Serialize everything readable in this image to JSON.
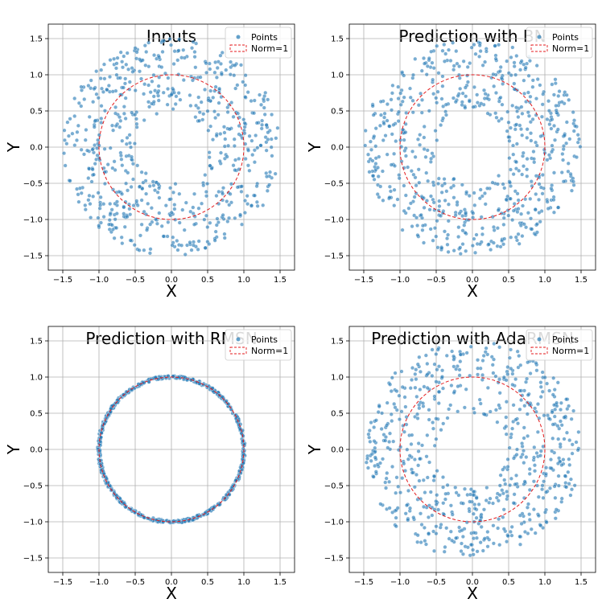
{
  "colors": {
    "points": "#1f77b4",
    "circle": "#e41a1c",
    "grid": "#b0b0b0"
  },
  "chart_data": [
    {
      "type": "scatter",
      "title": "Inputs",
      "xlabel": "X",
      "ylabel": "Y",
      "xlim": [
        -1.7,
        1.7
      ],
      "ylim": [
        -1.7,
        1.7
      ],
      "xticks": [
        -1.5,
        -1.0,
        -0.5,
        0.0,
        0.5,
        1.0,
        1.5
      ],
      "yticks": [
        -1.5,
        -1.0,
        -0.5,
        0.0,
        0.5,
        1.0,
        1.5
      ],
      "xtick_labels": [
        "−1.5",
        "−1.0",
        "−0.5",
        "0.0",
        "0.5",
        "1.0",
        "1.5"
      ],
      "ytick_labels": [
        "−1.5",
        "−1.0",
        "−0.5",
        "0.0",
        "0.5",
        "1.0",
        "1.5"
      ],
      "grid": true,
      "legend": {
        "position": "top-right",
        "entries": [
          "Points",
          "Norm=1"
        ]
      },
      "reference_circle_radius": 1.0,
      "points": {
        "count": 650,
        "distribution": "uniform annulus",
        "r_min": 0.5,
        "r_max": 1.5,
        "seed": 1
      }
    },
    {
      "type": "scatter",
      "title": "Prediction with BN",
      "xlabel": "X",
      "ylabel": "Y",
      "xlim": [
        -1.7,
        1.7
      ],
      "ylim": [
        -1.7,
        1.7
      ],
      "xticks": [
        -1.5,
        -1.0,
        -0.5,
        0.0,
        0.5,
        1.0,
        1.5
      ],
      "yticks": [
        -1.5,
        -1.0,
        -0.5,
        0.0,
        0.5,
        1.0,
        1.5
      ],
      "xtick_labels": [
        "−1.5",
        "−1.0",
        "−0.5",
        "0.0",
        "0.5",
        "1.0",
        "1.5"
      ],
      "ytick_labels": [
        "−1.5",
        "−1.0",
        "−0.5",
        "0.0",
        "0.5",
        "1.0",
        "1.5"
      ],
      "grid": true,
      "legend": {
        "position": "top-right",
        "entries": [
          "Points",
          "Norm=1"
        ]
      },
      "reference_circle_radius": 1.0,
      "points": {
        "count": 650,
        "distribution": "uniform annulus",
        "r_min": 0.5,
        "r_max": 1.5,
        "seed": 2
      }
    },
    {
      "type": "scatter",
      "title": "Prediction with RMSN",
      "xlabel": "X",
      "ylabel": "Y",
      "xlim": [
        -1.7,
        1.7
      ],
      "ylim": [
        -1.7,
        1.7
      ],
      "xticks": [
        -1.5,
        -1.0,
        -0.5,
        0.0,
        0.5,
        1.0,
        1.5
      ],
      "yticks": [
        -1.5,
        -1.0,
        -0.5,
        0.0,
        0.5,
        1.0,
        1.5
      ],
      "xtick_labels": [
        "−1.5",
        "−1.0",
        "−0.5",
        "0.0",
        "0.5",
        "1.0",
        "1.5"
      ],
      "ytick_labels": [
        "−1.5",
        "−1.0",
        "−0.5",
        "0.0",
        "0.5",
        "1.0",
        "1.5"
      ],
      "grid": true,
      "legend": {
        "position": "top-right",
        "entries": [
          "Points",
          "Norm=1"
        ]
      },
      "reference_circle_radius": 1.0,
      "points": {
        "count": 650,
        "distribution": "unit circle",
        "r_min": 0.98,
        "r_max": 1.02,
        "seed": 3
      }
    },
    {
      "type": "scatter",
      "title": "Prediction with AdaRMSN",
      "xlabel": "X",
      "ylabel": "Y",
      "xlim": [
        -1.7,
        1.7
      ],
      "ylim": [
        -1.7,
        1.7
      ],
      "xticks": [
        -1.5,
        -1.0,
        -0.5,
        0.0,
        0.5,
        1.0,
        1.5
      ],
      "yticks": [
        -1.5,
        -1.0,
        -0.5,
        0.0,
        0.5,
        1.0,
        1.5
      ],
      "xtick_labels": [
        "−1.5",
        "−1.0",
        "−0.5",
        "0.0",
        "0.5",
        "1.0",
        "1.5"
      ],
      "ytick_labels": [
        "−1.5",
        "−1.0",
        "−0.5",
        "0.0",
        "0.5",
        "1.0",
        "1.5"
      ],
      "grid": true,
      "legend": {
        "position": "top-right",
        "entries": [
          "Points",
          "Norm=1"
        ]
      },
      "reference_circle_radius": 1.0,
      "points": {
        "count": 650,
        "distribution": "uniform annulus",
        "r_min": 0.5,
        "r_max": 1.5,
        "seed": 4
      }
    }
  ]
}
